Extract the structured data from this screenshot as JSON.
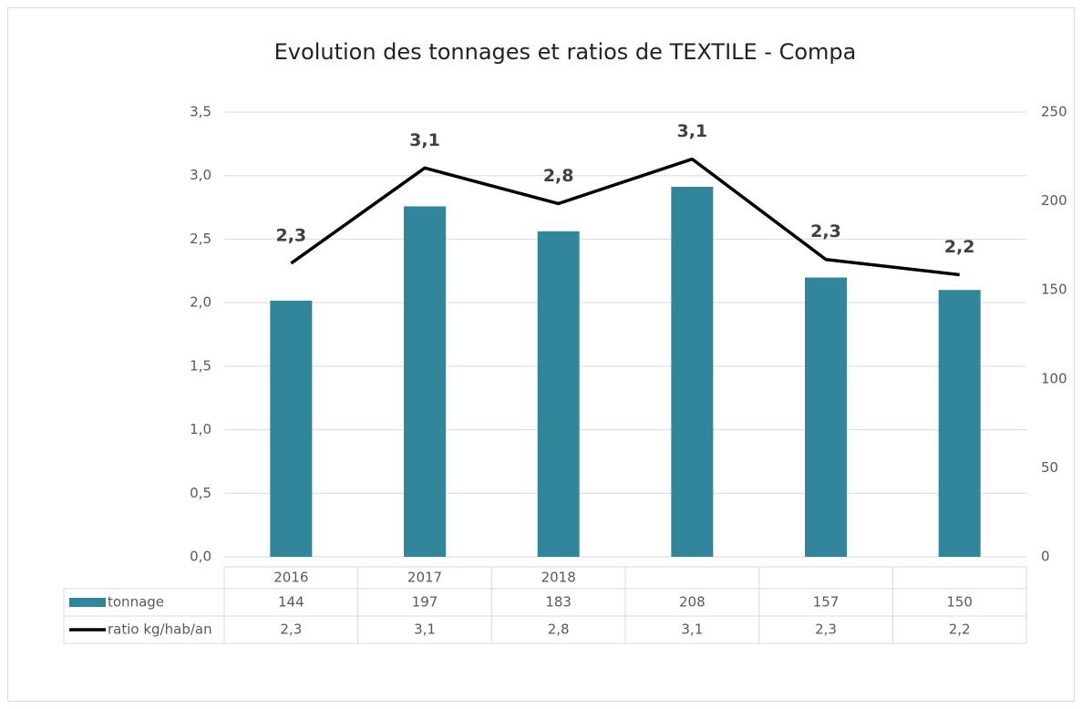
{
  "chart_data": {
    "type": "bar",
    "title": "Evolution des tonnages et ratios de TEXTILE - Compa",
    "categories": [
      "2016",
      "2017",
      "2018",
      null,
      null,
      null
    ],
    "series": [
      {
        "name": "tonnage",
        "type": "bar",
        "color": "#31869b",
        "axis": "y2",
        "values": [
          144,
          197,
          183,
          208,
          157,
          150
        ]
      },
      {
        "name": "ratio kg/hab/an",
        "type": "line",
        "color": "#000000",
        "values": [
          2.31,
          3.06,
          2.78,
          3.13,
          2.34,
          2.22
        ],
        "value_labels": [
          "2,3",
          "3,1",
          "2,8",
          "3,1",
          "2,3",
          "2,2"
        ]
      }
    ],
    "ylim": [
      0,
      3.5
    ],
    "yticks": [
      {
        "value": 0,
        "label": "0,0"
      },
      {
        "value": 0.5,
        "label": "0,5"
      },
      {
        "value": 1,
        "label": "1,0"
      },
      {
        "value": 1.5,
        "label": "1,5"
      },
      {
        "value": 2,
        "label": "2,0"
      },
      {
        "value": 2.5,
        "label": "2,5"
      },
      {
        "value": 3,
        "label": "3,0"
      },
      {
        "value": 3.5,
        "label": "3,5"
      }
    ],
    "y2lim": [
      0,
      250
    ],
    "y2ticks": [
      0,
      50,
      100,
      150,
      200,
      250
    ],
    "grid": true,
    "data_table": true
  }
}
